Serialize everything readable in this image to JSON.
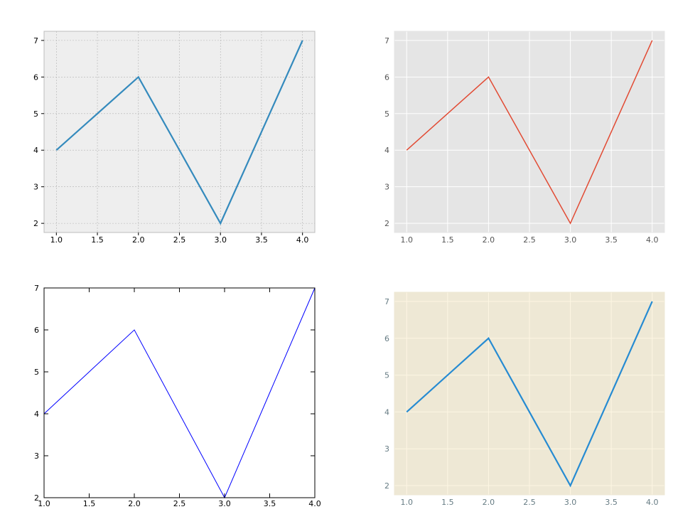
{
  "chart_data": [
    {
      "type": "line",
      "style_name": "bmh",
      "x": [
        1.0,
        2.0,
        3.0,
        4.0
      ],
      "y": [
        4,
        6,
        2,
        7
      ],
      "xlim": [
        0.85,
        4.15
      ],
      "ylim": [
        1.75,
        7.25
      ],
      "xticks": [
        "1.0",
        "1.5",
        "2.0",
        "2.5",
        "3.0",
        "3.5",
        "4.0"
      ],
      "yticks": [
        "2",
        "3",
        "4",
        "5",
        "6",
        "7"
      ],
      "grid": true,
      "colors": {
        "background": "#eeeeee",
        "line": "#348abd",
        "grid": "#b2b2b2",
        "frame": "#bcbcbc",
        "tick_text": "#000000"
      }
    },
    {
      "type": "line",
      "style_name": "ggplot",
      "x": [
        1.0,
        2.0,
        3.0,
        4.0
      ],
      "y": [
        4,
        6,
        2,
        7
      ],
      "xlim": [
        0.85,
        4.15
      ],
      "ylim": [
        1.75,
        7.25
      ],
      "xticks": [
        "1.0",
        "1.5",
        "2.0",
        "2.5",
        "3.0",
        "3.5",
        "4.0"
      ],
      "yticks": [
        "2",
        "3",
        "4",
        "5",
        "6",
        "7"
      ],
      "grid": true,
      "colors": {
        "background": "#e5e5e5",
        "line": "#e24a33",
        "grid": "#ffffff",
        "frame": "#e5e5e5",
        "tick_text": "#555555"
      }
    },
    {
      "type": "line",
      "style_name": "classic",
      "x": [
        1.0,
        2.0,
        3.0,
        4.0
      ],
      "y": [
        4,
        6,
        2,
        7
      ],
      "xlim": [
        1.0,
        4.0
      ],
      "ylim": [
        2,
        7
      ],
      "xticks": [
        "1.0",
        "1.5",
        "2.0",
        "2.5",
        "3.0",
        "3.5",
        "4.0"
      ],
      "yticks": [
        "2",
        "3",
        "4",
        "5",
        "6",
        "7"
      ],
      "grid": false,
      "colors": {
        "background": "#ffffff",
        "line": "#0000ff",
        "grid": "none",
        "frame": "#000000",
        "tick_text": "#000000"
      }
    },
    {
      "type": "line",
      "style_name": "Solarize_Light2",
      "x": [
        1.0,
        2.0,
        3.0,
        4.0
      ],
      "y": [
        4,
        6,
        2,
        7
      ],
      "xlim": [
        0.85,
        4.15
      ],
      "ylim": [
        1.75,
        7.25
      ],
      "xticks": [
        "1.0",
        "1.5",
        "2.0",
        "2.5",
        "3.0",
        "3.5",
        "4.0"
      ],
      "yticks": [
        "2",
        "3",
        "4",
        "5",
        "6",
        "7"
      ],
      "grid": true,
      "colors": {
        "background": "#eee8d5",
        "line": "#268bd2",
        "grid": "#fdf6e3",
        "frame": "#eee8d5",
        "tick_text": "#657b83"
      }
    }
  ]
}
